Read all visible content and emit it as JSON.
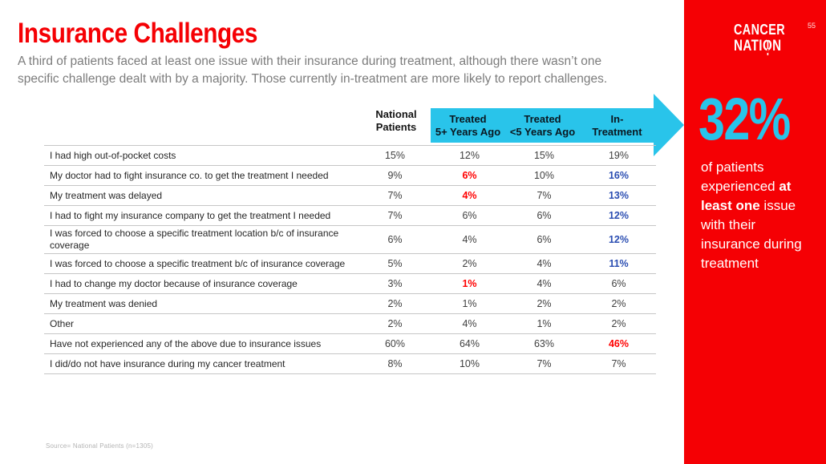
{
  "page": {
    "number": "55"
  },
  "header": {
    "title": "Insurance Challenges",
    "subtitle_line1": "A third of patients faced at least one issue with their insurance during treatment, although there wasn’t one",
    "subtitle_line2": "specific challenge dealt with by a majority. Those currently in-treatment are more likely to report challenges."
  },
  "table": {
    "columns": [
      {
        "line1": "National",
        "line2": "Patients"
      },
      {
        "line1": "Treated",
        "line2": "5+ Years Ago"
      },
      {
        "line1": "Treated",
        "line2": "<5 Years Ago"
      },
      {
        "line1": "In-",
        "line2": "Treatment"
      }
    ],
    "rows": [
      {
        "label": "I had high out-of-pocket costs",
        "values": [
          "15%",
          "12%",
          "15%",
          "19%"
        ],
        "styles": [
          "normal",
          "normal",
          "normal",
          "normal"
        ]
      },
      {
        "label": "My doctor had to fight insurance co. to get the treatment I needed",
        "values": [
          "9%",
          "6%",
          "10%",
          "16%"
        ],
        "styles": [
          "normal",
          "red",
          "normal",
          "blue"
        ]
      },
      {
        "label": "My treatment was delayed",
        "values": [
          "7%",
          "4%",
          "7%",
          "13%"
        ],
        "styles": [
          "normal",
          "red",
          "normal",
          "blue"
        ]
      },
      {
        "label": "I had to fight my insurance company to get the treatment I needed",
        "values": [
          "7%",
          "6%",
          "6%",
          "12%"
        ],
        "styles": [
          "normal",
          "normal",
          "normal",
          "blue"
        ]
      },
      {
        "label": "I was forced to choose a specific treatment location b/c of insurance coverage",
        "values": [
          "6%",
          "4%",
          "6%",
          "12%"
        ],
        "styles": [
          "normal",
          "normal",
          "normal",
          "blue"
        ]
      },
      {
        "label": "I was forced to choose a specific treatment b/c of insurance coverage",
        "values": [
          "5%",
          "2%",
          "4%",
          "11%"
        ],
        "styles": [
          "normal",
          "normal",
          "normal",
          "blue"
        ]
      },
      {
        "label": "I had to change my doctor because of insurance coverage",
        "values": [
          "3%",
          "1%",
          "4%",
          "6%"
        ],
        "styles": [
          "normal",
          "red",
          "normal",
          "normal"
        ]
      },
      {
        "label": "My treatment was denied",
        "values": [
          "2%",
          "1%",
          "2%",
          "2%"
        ],
        "styles": [
          "normal",
          "normal",
          "normal",
          "normal"
        ]
      },
      {
        "label": "Other",
        "values": [
          "2%",
          "4%",
          "1%",
          "2%"
        ],
        "styles": [
          "normal",
          "normal",
          "normal",
          "normal"
        ]
      },
      {
        "label": "Have not experienced any of the above due to insurance issues",
        "values": [
          "60%",
          "64%",
          "63%",
          "46%"
        ],
        "styles": [
          "normal",
          "normal",
          "normal",
          "red"
        ]
      },
      {
        "label": "I did/do not have insurance during my cancer treatment",
        "values": [
          "8%",
          "10%",
          "7%",
          "7%"
        ],
        "styles": [
          "normal",
          "normal",
          "normal",
          "normal"
        ]
      }
    ]
  },
  "sidebar": {
    "logo": {
      "line1": "CANCER",
      "nati": "NATI",
      "o": "O",
      "n": "N"
    },
    "stat_value": "32%",
    "stat_text_1": "of patients experienced ",
    "stat_text_bold": "at least one",
    "stat_text_2": " issue with their insurance during treatment"
  },
  "footer": {
    "source": "Source= National Patients (n=1305)"
  },
  "colors": {
    "red": "#f50004",
    "cyan": "#29c4ea",
    "value_blue": "#2b4eb2",
    "value_red": "#ff0000"
  }
}
